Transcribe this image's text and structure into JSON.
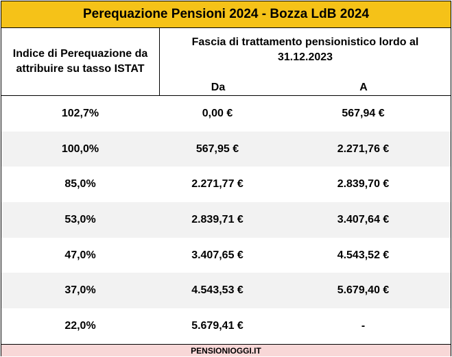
{
  "title": "Perequazione Pensioni 2024 - Bozza LdB 2024",
  "header": {
    "left_line1": "Indice di Perequazione da",
    "left_line2": "attribuire su tasso ISTAT",
    "span_line1": "Fascia di trattamento pensionistico lordo al",
    "span_line2": "31.12.2023",
    "col_da": "Da",
    "col_a": "A"
  },
  "rows": [
    {
      "indice": "102,7%",
      "da": "0,00 €",
      "a": "567,94 €"
    },
    {
      "indice": "100,0%",
      "da": "567,95 €",
      "a": "2.271,76 €"
    },
    {
      "indice": "85,0%",
      "da": "2.271,77 €",
      "a": "2.839,70 €"
    },
    {
      "indice": "53,0%",
      "da": "2.839,71 €",
      "a": "3.407,64 €"
    },
    {
      "indice": "47,0%",
      "da": "3.407,65 €",
      "a": "4.543,52 €"
    },
    {
      "indice": "37,0%",
      "da": "4.543,53 €",
      "a": "5.679,40 €"
    },
    {
      "indice": "22,0%",
      "da": "5.679,41 €",
      "a": "-"
    }
  ],
  "footer": "PENSIONIOGGI.IT",
  "colors": {
    "title_bg": "#f5c218",
    "alt_row_bg": "#f2f2f2",
    "footer_bg": "#f8d7d7"
  }
}
